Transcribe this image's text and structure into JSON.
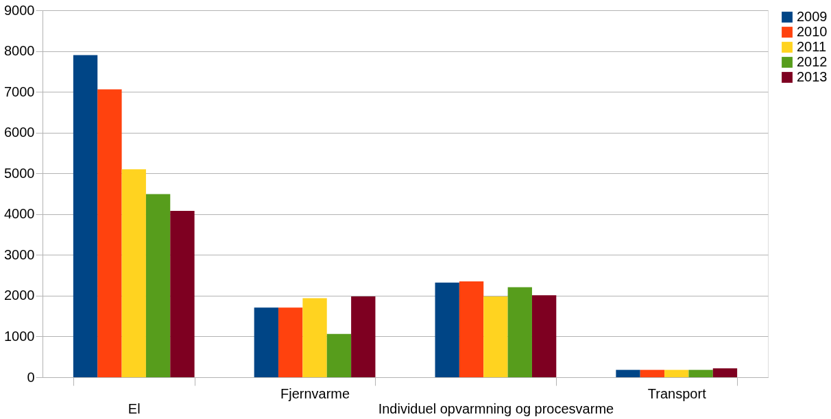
{
  "chart_data": {
    "type": "bar",
    "categories": [
      "El",
      "Fjernvarme",
      "Individuel opvarmning og procesvarme",
      "Transport"
    ],
    "series": [
      {
        "name": "2009",
        "color": "#004586",
        "values": [
          7900,
          1710,
          2320,
          180
        ]
      },
      {
        "name": "2010",
        "color": "#ff420e",
        "values": [
          7060,
          1710,
          2350,
          180
        ]
      },
      {
        "name": "2011",
        "color": "#ffd320",
        "values": [
          5100,
          1940,
          1980,
          180
        ]
      },
      {
        "name": "2012",
        "color": "#579d1c",
        "values": [
          4490,
          1060,
          2210,
          180
        ]
      },
      {
        "name": "2013",
        "color": "#7e0021",
        "values": [
          4080,
          1980,
          2010,
          220
        ]
      }
    ],
    "ylim": [
      0,
      9000
    ],
    "yticks": [
      0,
      1000,
      2000,
      3000,
      4000,
      5000,
      6000,
      7000,
      8000,
      9000
    ],
    "grid": "y",
    "legend": "right"
  }
}
